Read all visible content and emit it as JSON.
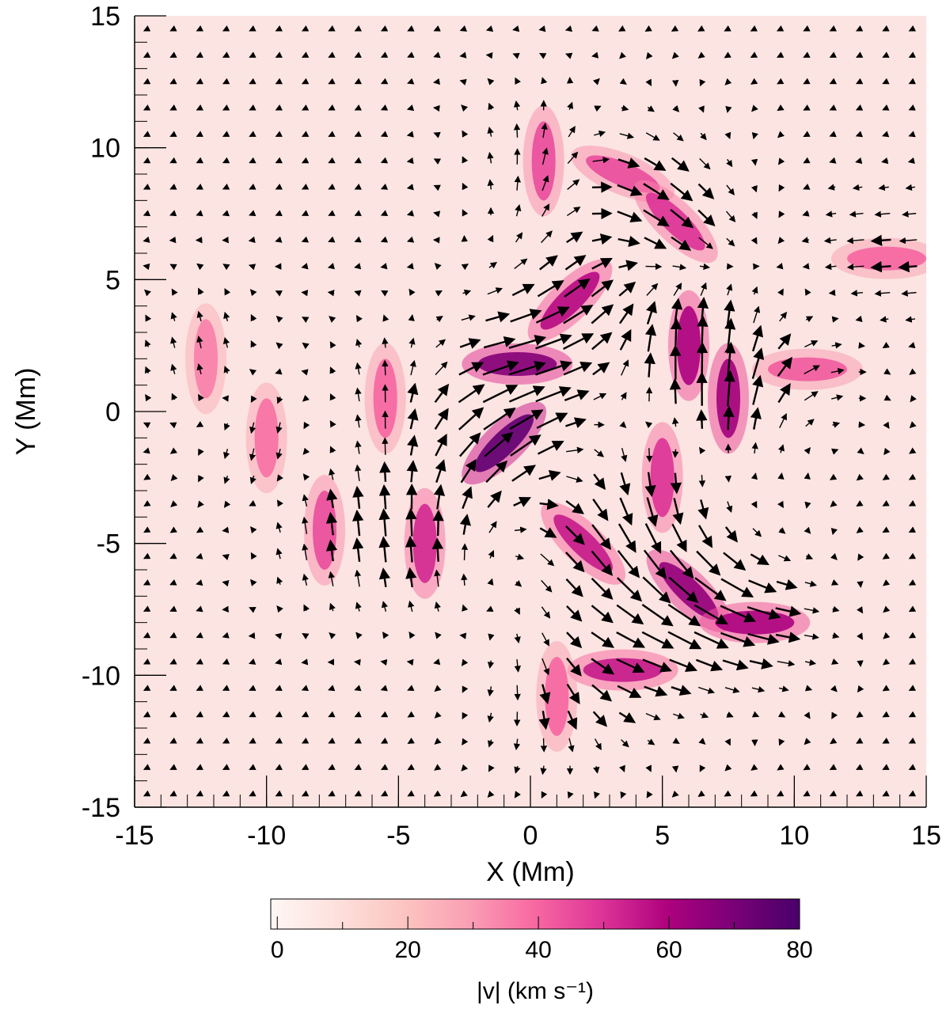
{
  "chart_data": {
    "type": "heatmap",
    "title": "",
    "xlabel": "X (Mm)",
    "ylabel": "Y (Mm)",
    "xlim": [
      -15,
      15
    ],
    "ylim": [
      -15,
      15
    ],
    "x_ticks": [
      "-15",
      "-10",
      "-5",
      "0",
      "5",
      "10",
      "15"
    ],
    "y_ticks": [
      "-15",
      "-10",
      "-5",
      "0",
      "5",
      "10",
      "15"
    ],
    "grid": false,
    "overlay": "velocity-vector-arrows",
    "colorbar": {
      "label": "|v|  (km s⁻¹)",
      "range": [
        -1,
        80
      ],
      "ticks": [
        "0",
        "20",
        "40",
        "60",
        "80"
      ],
      "colormap": [
        "#fff7f3",
        "#fde0dd",
        "#fcc5c0",
        "#fa9fb5",
        "#f768a1",
        "#dd3497",
        "#ae017e",
        "#7a0177",
        "#49006a"
      ]
    },
    "features": [
      {
        "x": -0.5,
        "y": 1.8,
        "speed": 68,
        "dir": "east"
      },
      {
        "x": -1.0,
        "y": -1.2,
        "speed": 75,
        "dir": "northeast"
      },
      {
        "x": 1.5,
        "y": 4.2,
        "speed": 58,
        "dir": "northeast"
      },
      {
        "x": 3.5,
        "y": 9.0,
        "speed": 45,
        "dir": "east-southeast"
      },
      {
        "x": 5.5,
        "y": 7.2,
        "speed": 50,
        "dir": "southeast"
      },
      {
        "x": 6.0,
        "y": 2.5,
        "speed": 60,
        "dir": "north"
      },
      {
        "x": 7.5,
        "y": 0.5,
        "speed": 62,
        "dir": "north"
      },
      {
        "x": 10.5,
        "y": 1.6,
        "speed": 42,
        "dir": "east"
      },
      {
        "x": 13.5,
        "y": 5.8,
        "speed": 40,
        "dir": "west"
      },
      {
        "x": 5.0,
        "y": -2.5,
        "speed": 50,
        "dir": "south"
      },
      {
        "x": 2.0,
        "y": -5.0,
        "speed": 55,
        "dir": "southeast"
      },
      {
        "x": 6.0,
        "y": -6.8,
        "speed": 65,
        "dir": "southeast"
      },
      {
        "x": 8.5,
        "y": -8.0,
        "speed": 60,
        "dir": "east"
      },
      {
        "x": 3.5,
        "y": -9.8,
        "speed": 55,
        "dir": "east"
      },
      {
        "x": -4.0,
        "y": -5.0,
        "speed": 52,
        "dir": "north"
      },
      {
        "x": -7.8,
        "y": -4.5,
        "speed": 45,
        "dir": "north"
      },
      {
        "x": -12.3,
        "y": 2.0,
        "speed": 35,
        "dir": "north"
      },
      {
        "x": -10.0,
        "y": -1.0,
        "speed": 38,
        "dir": "south"
      },
      {
        "x": -5.5,
        "y": 0.5,
        "speed": 40,
        "dir": "north"
      },
      {
        "x": 1.0,
        "y": -10.8,
        "speed": 40,
        "dir": "south"
      },
      {
        "x": 0.5,
        "y": 9.5,
        "speed": 45,
        "dir": "north"
      }
    ]
  }
}
